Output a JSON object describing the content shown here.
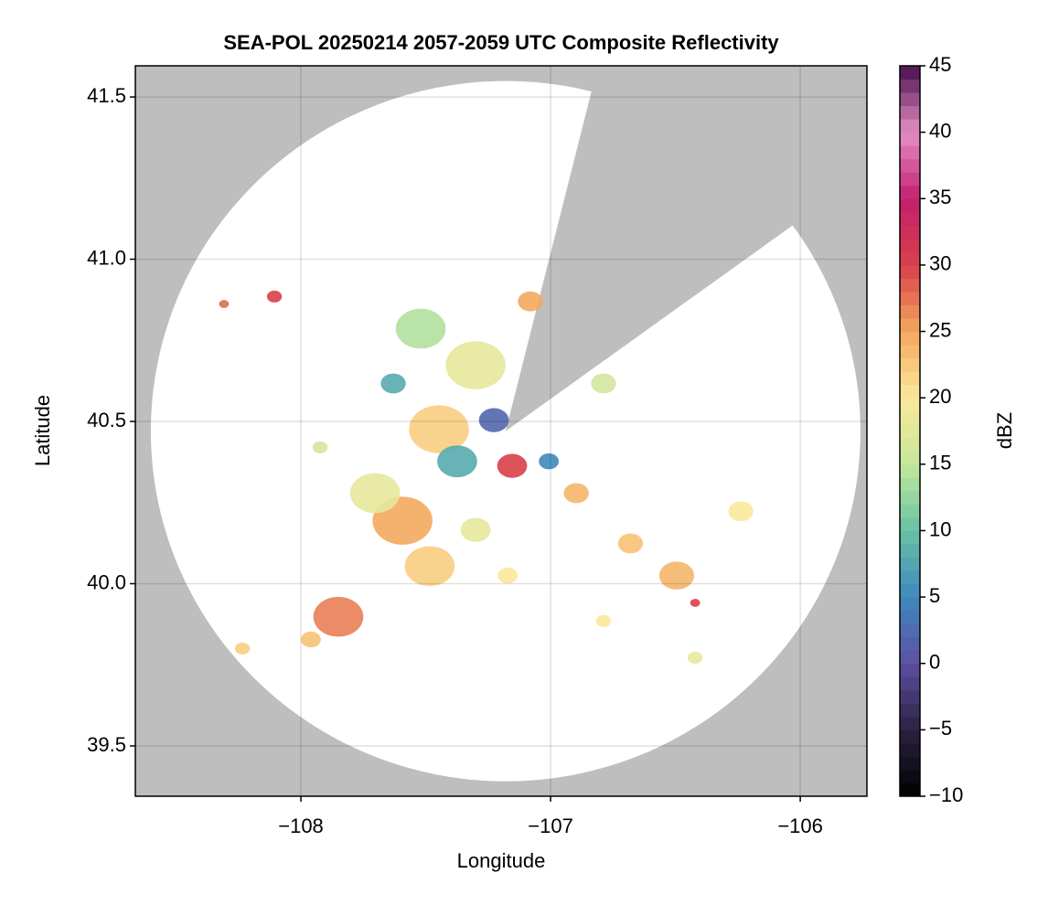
{
  "chart_data": {
    "type": "radar-map",
    "title": "SEA-POL 20250214 2057-2059 UTC Composite Reflectivity",
    "x_label": "Longitude",
    "y_label": "Latitude",
    "xlim": [
      -108.663,
      -105.733
    ],
    "ylim": [
      39.345,
      41.596
    ],
    "xticks": [
      {
        "value": -108,
        "label": "−108"
      },
      {
        "value": -107,
        "label": "−107"
      },
      {
        "value": -106,
        "label": "−106"
      }
    ],
    "yticks": [
      39.5,
      {
        "value": 40,
        "label": "40.0"
      },
      40.5,
      {
        "value": 41,
        "label": "41.0"
      },
      41.5
    ],
    "grid": true,
    "background_color": "#bebebe",
    "radar": {
      "lon": -107.18,
      "lat": 40.47,
      "radius_lon": 1.421,
      "radius_lat": 1.079,
      "blocked_azimuths": [
        14,
        54
      ]
    },
    "colorbar": {
      "label": "dBZ",
      "lim": [
        -10,
        45
      ],
      "ticks": [
        {
          "value": -10,
          "label": "−10"
        },
        {
          "value": -5,
          "label": "−5"
        },
        0,
        5,
        10,
        15,
        20,
        25,
        30,
        35,
        40,
        45
      ],
      "colors": [
        "#000000",
        "#2b2140",
        "#5e4fa2",
        "#3f88bd",
        "#66c2a5",
        "#c6e79c",
        "#fbe89a",
        "#f4a85e",
        "#d8404a",
        "#c41f6e",
        "#e48fc4",
        "#4a0f4f"
      ]
    },
    "echoes": [
      {
        "lon": -107.593,
        "lat": 40.194,
        "dbz": 25,
        "size": 0.12
      },
      {
        "lon": -107.154,
        "lat": 40.363,
        "dbz": 30,
        "size": 0.06
      },
      {
        "lon": -107.85,
        "lat": 39.898,
        "dbz": 27,
        "size": 0.1
      },
      {
        "lon": -107.484,
        "lat": 40.054,
        "dbz": 22,
        "size": 0.1
      },
      {
        "lon": -107.447,
        "lat": 40.476,
        "dbz": 22,
        "size": 0.12
      },
      {
        "lon": -107.3,
        "lat": 40.673,
        "dbz": 18,
        "size": 0.12
      },
      {
        "lon": -107.52,
        "lat": 40.786,
        "dbz": 14,
        "size": 0.1
      },
      {
        "lon": -107.227,
        "lat": 40.504,
        "dbz": 2,
        "size": 0.06
      },
      {
        "lon": -107.081,
        "lat": 40.87,
        "dbz": 25,
        "size": 0.05
      },
      {
        "lon": -107.703,
        "lat": 40.279,
        "dbz": 18,
        "size": 0.1
      },
      {
        "lon": -106.897,
        "lat": 40.279,
        "dbz": 24,
        "size": 0.05
      },
      {
        "lon": -106.495,
        "lat": 40.025,
        "dbz": 24,
        "size": 0.07
      },
      {
        "lon": -106.68,
        "lat": 40.124,
        "dbz": 23,
        "size": 0.05
      },
      {
        "lon": -106.238,
        "lat": 40.223,
        "dbz": 20,
        "size": 0.05
      },
      {
        "lon": -108.106,
        "lat": 40.885,
        "dbz": 30,
        "size": 0.03
      },
      {
        "lon": -108.308,
        "lat": 40.862,
        "dbz": 28,
        "size": 0.02
      },
      {
        "lon": -107.96,
        "lat": 39.828,
        "dbz": 23,
        "size": 0.04
      },
      {
        "lon": -108.234,
        "lat": 39.8,
        "dbz": 22,
        "size": 0.03
      },
      {
        "lon": -106.788,
        "lat": 40.617,
        "dbz": 16,
        "size": 0.05
      },
      {
        "lon": -107.3,
        "lat": 40.166,
        "dbz": 18,
        "size": 0.06
      },
      {
        "lon": -107.172,
        "lat": 40.025,
        "dbz": 20,
        "size": 0.04
      },
      {
        "lon": -107.007,
        "lat": 40.377,
        "dbz": 5,
        "size": 0.04
      },
      {
        "lon": -107.63,
        "lat": 40.617,
        "dbz": 8,
        "size": 0.05
      },
      {
        "lon": -107.923,
        "lat": 40.42,
        "dbz": 16,
        "size": 0.03
      },
      {
        "lon": -106.788,
        "lat": 39.885,
        "dbz": 20,
        "size": 0.03
      },
      {
        "lon": -106.421,
        "lat": 39.772,
        "dbz": 18,
        "size": 0.03
      },
      {
        "lon": -106.421,
        "lat": 39.941,
        "dbz": 30,
        "size": 0.02
      },
      {
        "lon": -107.374,
        "lat": 40.377,
        "dbz": 8,
        "size": 0.08
      }
    ]
  }
}
